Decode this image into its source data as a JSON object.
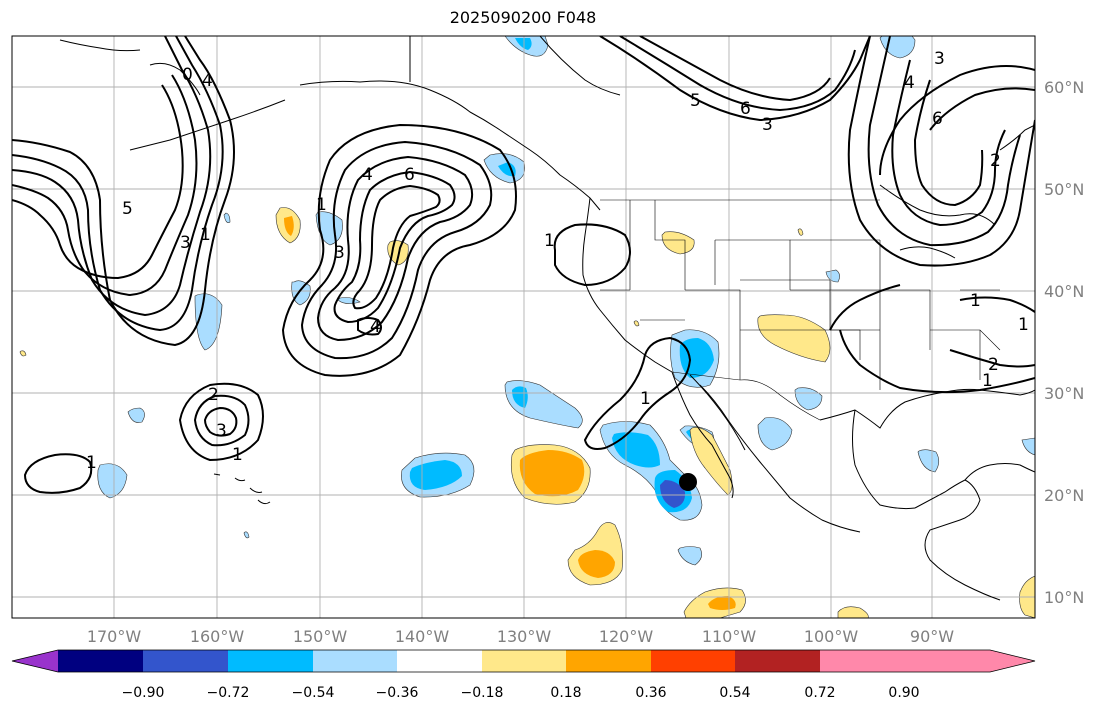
{
  "title": "2025090200 F048",
  "map": {
    "longitude_labels": [
      "170°W",
      "160°W",
      "150°W",
      "140°W",
      "130°W",
      "120°W",
      "110°W",
      "100°W",
      "90°W"
    ],
    "latitude_labels": [
      "60°N",
      "50°N",
      "40°N",
      "30°N",
      "20°N",
      "10°N"
    ],
    "grid": true,
    "contour_labels": [
      "0",
      "4",
      "1",
      "3",
      "5",
      "1",
      "4",
      "6",
      "3",
      "4",
      "2",
      "3",
      "1",
      "1",
      "1",
      "5",
      "6",
      "3",
      "4",
      "6",
      "3",
      "2",
      "1",
      "1",
      "2",
      "1",
      "1"
    ],
    "marker": "black-dot",
    "colors": {
      "contour": "#000000",
      "land_outline": "#000000",
      "gridline": "#b0b0b0"
    }
  },
  "colorbar": {
    "labels": [
      "−0.90",
      "−0.72",
      "−0.54",
      "−0.36",
      "−0.18",
      "0.18",
      "0.36",
      "0.54",
      "0.72",
      "0.90"
    ],
    "colors": [
      "#9933cc",
      "#000080",
      "#3355cc",
      "#00bbff",
      "#aaddff",
      "#ffffff",
      "#ffe88a",
      "#ffa500",
      "#ff4000",
      "#b22222",
      "#ff88aa"
    ]
  }
}
